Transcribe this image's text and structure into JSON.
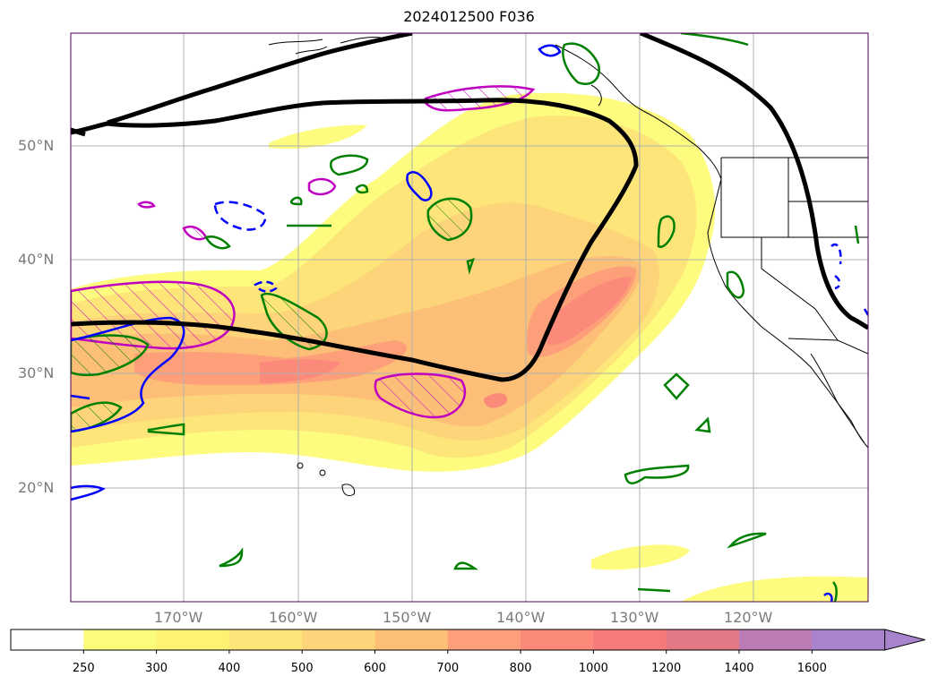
{
  "title": "2024012500 F036",
  "map": {
    "lat_labels": [
      "50°N",
      "40°N",
      "30°N",
      "20°N"
    ],
    "lon_labels": [
      "170°W",
      "160°W",
      "150°W",
      "140°W",
      "130°W",
      "120°W"
    ],
    "extent": {
      "lon": [
        -180,
        -110
      ],
      "lat": [
        10,
        60
      ]
    },
    "gridlines": true
  },
  "colorbar": {
    "ticks": [
      "250",
      "300",
      "400",
      "500",
      "600",
      "700",
      "800",
      "1000",
      "1200",
      "1400",
      "1600"
    ],
    "colors": [
      "#ffffff",
      "#fcfc7c",
      "#fdf274",
      "#fde57a",
      "#fdd479",
      "#fdbf78",
      "#fda07a",
      "#fc8a7a",
      "#f67a7a",
      "#e27886",
      "#bb7cb6",
      "#a884cd"
    ],
    "extend": "max"
  },
  "colors": {
    "contour_black": "#000000",
    "contour_magenta": "#c000c0",
    "contour_green": "#008000",
    "contour_blue": "#0000ff"
  }
}
